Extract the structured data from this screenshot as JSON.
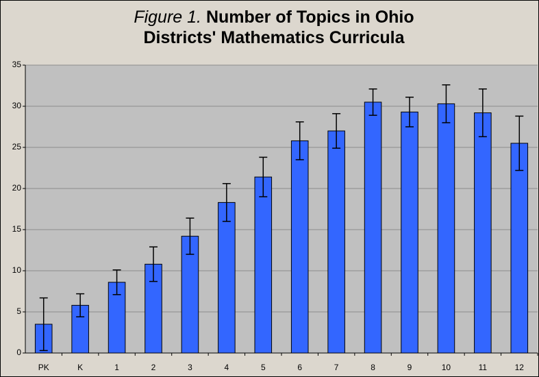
{
  "chart_data": {
    "type": "bar",
    "figure_label": "Figure 1.",
    "title": "Number of Topics in Ohio Districts' Mathematics Curricula",
    "categories": [
      "PK",
      "K",
      "1",
      "2",
      "3",
      "4",
      "5",
      "6",
      "7",
      "8",
      "9",
      "10",
      "11",
      "12"
    ],
    "values": [
      3.5,
      5.8,
      8.6,
      10.8,
      14.2,
      18.3,
      21.4,
      25.8,
      27.0,
      30.5,
      29.3,
      30.3,
      29.2,
      25.5
    ],
    "errors": [
      3.2,
      1.4,
      1.5,
      2.1,
      2.2,
      2.3,
      2.4,
      2.3,
      2.1,
      1.6,
      1.8,
      2.3,
      2.9,
      3.3
    ],
    "color": "#3366ff",
    "ylim": [
      0,
      35
    ],
    "yticks": [
      0,
      5,
      10,
      15,
      20,
      25,
      30,
      35
    ],
    "grid": true
  }
}
